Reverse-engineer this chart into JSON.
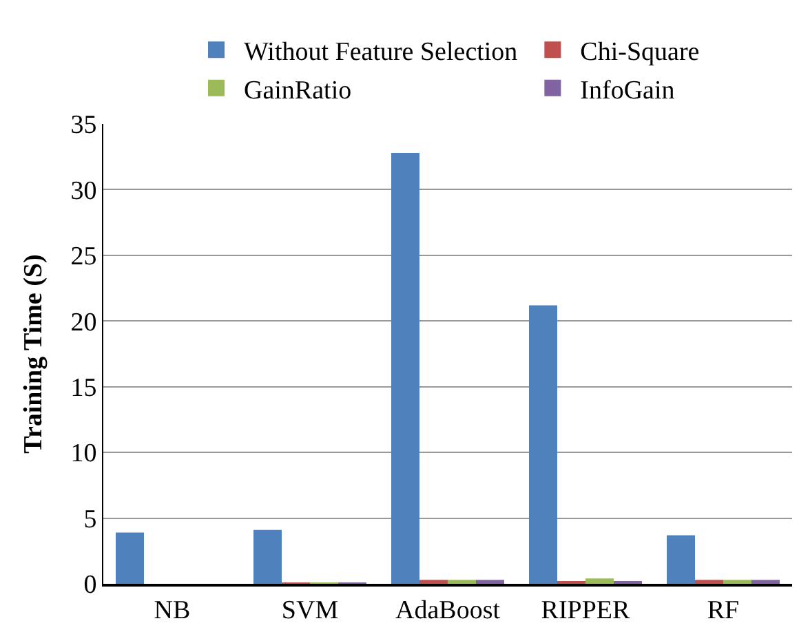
{
  "chart_data": {
    "type": "bar",
    "ylabel": "Training Time (S)",
    "categories": [
      "NB",
      "SVM",
      "AdaBoost",
      "RIPPER",
      "RF"
    ],
    "series": [
      {
        "name": "Without Feature Selection",
        "color": "#4f81bd",
        "values": [
          3.9,
          4.1,
          32.8,
          21.2,
          3.7
        ]
      },
      {
        "name": "Chi-Square",
        "color": "#c0504d",
        "values": [
          null,
          0.1,
          0.3,
          0.2,
          0.3
        ]
      },
      {
        "name": "GainRatio",
        "color": "#9bbb59",
        "values": [
          null,
          0.1,
          0.3,
          0.4,
          0.3
        ]
      },
      {
        "name": "InfoGain",
        "color": "#8064a2",
        "values": [
          null,
          0.1,
          0.3,
          0.2,
          0.3
        ]
      }
    ],
    "ylim": [
      0,
      35
    ],
    "yticks": [
      0,
      5,
      10,
      15,
      20,
      25,
      30,
      35
    ],
    "grid": "y",
    "legend": "top"
  }
}
